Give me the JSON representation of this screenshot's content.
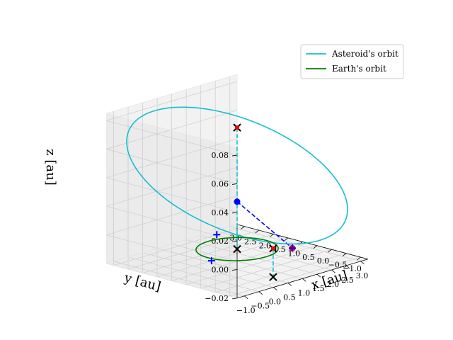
{
  "chart_data": {
    "type": "line",
    "projection": "3d",
    "xlabel": "$x$ [au]",
    "ylabel": "$y$ [au]",
    "zlabel": "$z$ [au]",
    "xlabel_text": "x [au]",
    "ylabel_text": "y [au]",
    "zlabel_text": "z [au]",
    "xlim": [
      -1.25,
      3.25
    ],
    "ylim": [
      -1.25,
      3.25
    ],
    "zlim": [
      -0.02,
      0.085
    ],
    "x_ticks": [
      "−1.0",
      "−0.5",
      "0.0",
      "0.5",
      "1.0",
      "1.5",
      "2.0",
      "2.5",
      "3.0"
    ],
    "y_ticks": [
      "−1.0",
      "−0.5",
      "0.0",
      "0.5",
      "1.0",
      "1.5",
      "2.0",
      "2.5",
      "3.0"
    ],
    "z_ticks": [
      "−0.02",
      "0.00",
      "0.02",
      "0.04",
      "0.06",
      "0.08"
    ],
    "grid": true,
    "legend_position": "top-right",
    "series": [
      {
        "name": "Asteroid's orbit",
        "color": "#17becf",
        "line": "solid",
        "kind": "ellipse",
        "center": [
          1.0,
          1.0,
          0.04
        ],
        "u_axis": [
          -1.9,
          1.9,
          0.025
        ],
        "v_axis": [
          -0.3,
          -0.3,
          0.045
        ]
      },
      {
        "name": "Earth's orbit",
        "color": "#008000",
        "line": "solid",
        "kind": "circle",
        "center": [
          0,
          0,
          0
        ],
        "radius": 1.0
      }
    ],
    "lines": [
      {
        "from": [
          2.9,
          2.9,
          0.0
        ],
        "to": [
          0.95,
          -0.95,
          0.0
        ],
        "color": "#0000ff",
        "style": "dashed"
      },
      {
        "from": [
          0.0,
          0.0,
          0.085
        ],
        "to": [
          0.0,
          0.0,
          0.0
        ],
        "color": "#17becf",
        "style": "dashed"
      },
      {
        "from": [
          0.62,
          -0.62,
          0.0
        ],
        "to": [
          0.62,
          -0.62,
          -0.02
        ],
        "color": "#17becf",
        "style": "dashed"
      }
    ],
    "markers": [
      {
        "pos": [
          2.9,
          2.9,
          0.0
        ],
        "symbol": "dot",
        "color": "#0000ff"
      },
      {
        "pos": [
          0.95,
          -0.95,
          0.0
        ],
        "symbol": "dot",
        "color": "#ff0000"
      },
      {
        "pos": [
          0.95,
          -0.95,
          0.0
        ],
        "symbol": "plus",
        "color": "#0000ff"
      },
      {
        "pos": [
          0.55,
          1.25,
          0.0
        ],
        "symbol": "plus",
        "color": "#0000ff"
      },
      {
        "pos": [
          0.62,
          1.5,
          -0.02
        ],
        "symbol": "plus",
        "color": "#0000ff"
      },
      {
        "pos": [
          0.0,
          0.0,
          0.085
        ],
        "symbol": "x",
        "color": "#000000"
      },
      {
        "pos": [
          0.0,
          0.0,
          0.085
        ],
        "symbol": "dot",
        "color": "#ff0000",
        "small": true
      },
      {
        "pos": [
          0.0,
          0.0,
          0.0
        ],
        "symbol": "x",
        "color": "#000000"
      },
      {
        "pos": [
          0.62,
          -0.62,
          0.0
        ],
        "symbol": "x",
        "color": "#000000"
      },
      {
        "pos": [
          0.62,
          -0.62,
          0.0
        ],
        "symbol": "dot",
        "color": "#ff0000",
        "small": true
      },
      {
        "pos": [
          0.62,
          -0.62,
          -0.02
        ],
        "symbol": "x",
        "color": "#000000"
      }
    ]
  }
}
